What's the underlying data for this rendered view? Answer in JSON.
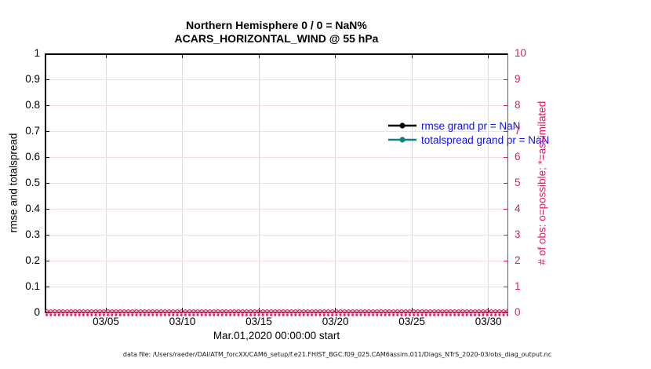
{
  "figure": {
    "title_line1": "Northern Hemisphere 0 / 0 = NaN%",
    "title_line2": "ACARS_HORIZONTAL_WIND @ 55 hPa",
    "footer": "data file: /Users/raeder/DAI/ATM_forcXX/CAM6_setup/f.e21.FHIST_BGC.f09_025.CAM6assim.011/Diags_NTrS_2020-03/obs_diag_output.nc"
  },
  "colors": {
    "axis_left": "#000000",
    "axis_right": "#df1d5e",
    "grid_vertical": "#dcdcdc",
    "grid_horizontal": "#f7dce6",
    "legend_text": "#1111ee",
    "rmse_series": "#000000",
    "totalspread_series": "#0e837c",
    "obs_markers": "#df1d5e"
  },
  "chart_data": {
    "type": "line",
    "title": "Northern Hemisphere 0 / 0 = NaN%",
    "subtitle": "ACARS_HORIZONTAL_WIND @ 55 hPa",
    "xlabel": "Mar.01,2020 00:00:00 start",
    "ylabel_left": "rmse and totalspread",
    "ylabel_right": "# of obs: o=possible; *=assimilated",
    "x_tick_labels": [
      "03/05",
      "03/10",
      "03/15",
      "03/20",
      "03/25",
      "03/30"
    ],
    "x_tick_days": [
      4,
      9,
      14,
      19,
      24,
      29
    ],
    "x_range_days": [
      0,
      30.3
    ],
    "y_left_axis": {
      "min": 0,
      "max": 1,
      "ticks": [
        0,
        0.1,
        0.2,
        0.3,
        0.4,
        0.5,
        0.6,
        0.7,
        0.8,
        0.9,
        1
      ]
    },
    "y_right_axis": {
      "min": 0,
      "max": 10,
      "ticks": [
        0,
        1,
        2,
        3,
        4,
        5,
        6,
        7,
        8,
        9,
        10
      ]
    },
    "grid": true,
    "legend_position": "top-right-inside",
    "legend": [
      {
        "label": "rmse grand pr = NaN",
        "color": "#000000",
        "marker": "filled-circle"
      },
      {
        "label": "totalspread grand pr = NaN",
        "color": "#0e837c",
        "marker": "filled-circle"
      }
    ],
    "series": [
      {
        "name": "rmse",
        "axis": "left",
        "values": [],
        "note": "all values NaN - no line drawn"
      },
      {
        "name": "totalspread",
        "axis": "left",
        "values": [],
        "note": "all values NaN - no line drawn"
      },
      {
        "name": "possible obs (o markers)",
        "axis": "right",
        "constant_value": 0,
        "marker": "o"
      },
      {
        "name": "assimilated obs (* markers)",
        "axis": "right",
        "constant_value": 0,
        "marker": "*"
      }
    ]
  }
}
